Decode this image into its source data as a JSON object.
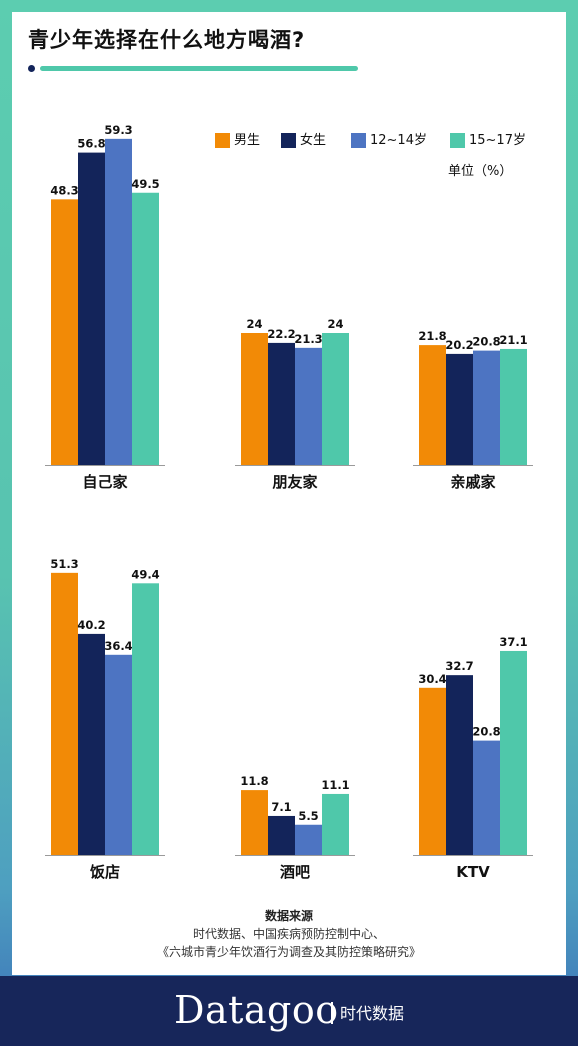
{
  "title": "青少年选择在什么地方喝酒?",
  "colors": {
    "male": "#f28a06",
    "female": "#13245a",
    "age12_14": "#4d74c2",
    "age15_17": "#4fc8aa",
    "frame": "#5ccdb0",
    "footer": "#17265a"
  },
  "legend": [
    "男生",
    "女生",
    "12~14岁",
    "15~17岁"
  ],
  "unit": "单位（%）",
  "chart_data": {
    "type": "bar",
    "series": [
      {
        "name": "男生",
        "color": "#f28a06"
      },
      {
        "name": "女生",
        "color": "#13245a"
      },
      {
        "name": "12~14岁",
        "color": "#4d74c2"
      },
      {
        "name": "15~17岁",
        "color": "#4fc8aa"
      }
    ],
    "panels": [
      {
        "category": "自己家",
        "values": [
          48.3,
          56.8,
          59.3,
          49.5
        ],
        "labels": [
          "48.3",
          "56.8",
          "59.3",
          "49.5"
        ]
      },
      {
        "category": "朋友家",
        "values": [
          24,
          22.2,
          21.3,
          24
        ],
        "labels": [
          "24",
          "22.2",
          "21.3",
          "24"
        ]
      },
      {
        "category": "亲戚家",
        "values": [
          21.8,
          20.2,
          20.8,
          21.1
        ],
        "labels": [
          "21.8",
          "20.2",
          "20.8",
          "21.1"
        ]
      },
      {
        "category": "饭店",
        "values": [
          51.3,
          40.2,
          36.4,
          49.4
        ],
        "labels": [
          "51.3",
          "40.2",
          "36.4",
          "49.4"
        ]
      },
      {
        "category": "酒吧",
        "values": [
          11.8,
          7.1,
          5.5,
          11.1
        ],
        "labels": [
          "11.8",
          "7.1",
          "5.5",
          "11.1"
        ]
      },
      {
        "category": "KTV",
        "values": [
          30.4,
          32.7,
          20.8,
          37.1
        ],
        "labels": [
          "30.4",
          "32.7",
          "20.8",
          "37.1"
        ]
      }
    ],
    "title": "青少年选择在什么地方喝酒?",
    "unit": "单位（%）"
  },
  "source": {
    "title": "数据来源",
    "line1": "时代数据、中国疾病预防控制中心、",
    "line2": "《六城市青少年饮酒行为调查及其防控策略研究》"
  },
  "footer": {
    "brand": "Datagoo",
    "brand_cn": "时代数据"
  }
}
